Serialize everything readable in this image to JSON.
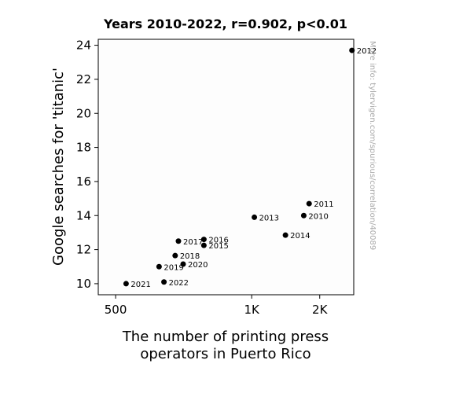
{
  "chart_data": {
    "type": "scatter",
    "title": "Years 2010-2022, r=0.902, p<0.01",
    "xlabel_lines": [
      "The number of printing press",
      "operators in Puerto Rico"
    ],
    "ylabel": "Google searches for 'titanic'",
    "x_scale": "reciprocal",
    "xlim": [
      470,
      4000
    ],
    "ylim": [
      9.35,
      24.35
    ],
    "x_ticks": [
      {
        "value": 500,
        "label": "500"
      },
      {
        "value": 1000,
        "label": "1K"
      },
      {
        "value": 2000,
        "label": "2K"
      }
    ],
    "y_ticks": [
      {
        "value": 10,
        "label": "10"
      },
      {
        "value": 12,
        "label": "12"
      },
      {
        "value": 14,
        "label": "14"
      },
      {
        "value": 16,
        "label": "16"
      },
      {
        "value": 18,
        "label": "18"
      },
      {
        "value": 20,
        "label": "20"
      },
      {
        "value": 22,
        "label": "22"
      },
      {
        "value": 24,
        "label": "24"
      }
    ],
    "points": [
      {
        "label": "2010",
        "x": 1620,
        "y": 14.0
      },
      {
        "label": "2011",
        "x": 1730,
        "y": 14.7
      },
      {
        "label": "2012",
        "x": 3800,
        "y": 23.7
      },
      {
        "label": "2013",
        "x": 1020,
        "y": 13.9
      },
      {
        "label": "2014",
        "x": 1330,
        "y": 12.85
      },
      {
        "label": "2015",
        "x": 740,
        "y": 12.25
      },
      {
        "label": "2016",
        "x": 740,
        "y": 12.6
      },
      {
        "label": "2017",
        "x": 650,
        "y": 12.5
      },
      {
        "label": "2018",
        "x": 640,
        "y": 11.65
      },
      {
        "label": "2019",
        "x": 595,
        "y": 11.0
      },
      {
        "label": "2020",
        "x": 665,
        "y": 11.15
      },
      {
        "label": "2021",
        "x": 520,
        "y": 10.0
      },
      {
        "label": "2022",
        "x": 608,
        "y": 10.1
      }
    ],
    "grid": false,
    "watermark": "More info: tylervigen.com/spurious/correlation/40089"
  }
}
